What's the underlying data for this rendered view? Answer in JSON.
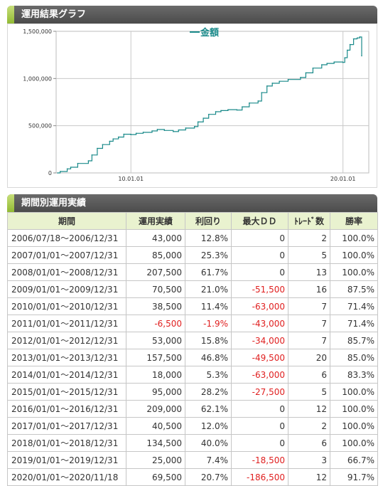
{
  "chart_section": {
    "title": "運用結果グラフ"
  },
  "table_section": {
    "title": "期間別運用実績"
  },
  "chart_data": {
    "type": "line",
    "title": "",
    "xlabel": "",
    "ylabel": "",
    "legend": "top-center",
    "grid": true,
    "ylim": [
      0,
      1500000
    ],
    "yticks": [
      0,
      500000,
      1000000,
      1500000
    ],
    "ytick_labels": [
      "0",
      "500,000",
      "1,000,000",
      "1,500,000"
    ],
    "xticks": [
      "2010-01-01",
      "2020-01-01"
    ],
    "xtick_labels": [
      "10.01.01",
      "20.01.01"
    ],
    "series": [
      {
        "name": "金額",
        "color": "#1a8a8a",
        "x": [
          "2006-07-18",
          "2006-09-01",
          "2006-12-31",
          "2007-03-01",
          "2007-07-01",
          "2007-12-31",
          "2008-03-01",
          "2008-06-01",
          "2008-09-01",
          "2008-12-31",
          "2009-03-01",
          "2009-06-01",
          "2009-09-01",
          "2009-12-31",
          "2010-04-01",
          "2010-08-01",
          "2010-12-31",
          "2011-04-01",
          "2011-08-01",
          "2011-12-31",
          "2012-04-01",
          "2012-08-01",
          "2012-12-31",
          "2013-03-01",
          "2013-06-01",
          "2013-09-01",
          "2013-12-31",
          "2014-04-01",
          "2014-08-01",
          "2014-12-31",
          "2015-04-01",
          "2015-08-01",
          "2015-12-31",
          "2016-03-01",
          "2016-06-01",
          "2016-09-01",
          "2016-12-31",
          "2017-06-01",
          "2017-12-31",
          "2018-04-01",
          "2018-08-01",
          "2018-12-31",
          "2019-04-01",
          "2019-08-01",
          "2019-12-31",
          "2020-02-01",
          "2020-03-15",
          "2020-05-01",
          "2020-07-01",
          "2020-09-01",
          "2020-10-15",
          "2020-11-18"
        ],
        "values": [
          0,
          15000,
          43000,
          60000,
          100000,
          128000,
          190000,
          260000,
          300000,
          335500,
          360000,
          380000,
          410000,
          406000,
          420000,
          430000,
          444500,
          460000,
          450000,
          438000,
          455000,
          475000,
          491000,
          540000,
          580000,
          620000,
          648500,
          660000,
          670000,
          666500,
          700000,
          740000,
          761500,
          850000,
          920000,
          950000,
          970500,
          990000,
          1011000,
          1060000,
          1110000,
          1145500,
          1160000,
          1175000,
          1170500,
          1220000,
          1300000,
          1360000,
          1420000,
          1430000,
          1440000,
          1240000
        ]
      }
    ]
  },
  "table": {
    "headers": [
      "期間",
      "運用実績",
      "利回り",
      "最大ＤＤ",
      "ﾄﾚｰﾄﾞ数",
      "勝率"
    ],
    "rows": [
      [
        "2006/07/18～2006/12/31",
        "43,000",
        "12.8%",
        "0",
        "2",
        "100.0%"
      ],
      [
        "2007/01/01～2007/12/31",
        "85,000",
        "25.3%",
        "0",
        "5",
        "100.0%"
      ],
      [
        "2008/01/01～2008/12/31",
        "207,500",
        "61.7%",
        "0",
        "13",
        "100.0%"
      ],
      [
        "2009/01/01～2009/12/31",
        "70,500",
        "21.0%",
        "-51,500",
        "16",
        "87.5%"
      ],
      [
        "2010/01/01～2010/12/31",
        "38,500",
        "11.4%",
        "-63,000",
        "7",
        "71.4%"
      ],
      [
        "2011/01/01～2011/12/31",
        "-6,500",
        "-1.9%",
        "-43,000",
        "7",
        "71.4%"
      ],
      [
        "2012/01/01～2012/12/31",
        "53,000",
        "15.8%",
        "-34,000",
        "7",
        "85.7%"
      ],
      [
        "2013/01/01～2013/12/31",
        "157,500",
        "46.8%",
        "-49,500",
        "20",
        "85.0%"
      ],
      [
        "2014/01/01～2014/12/31",
        "18,000",
        "5.3%",
        "-63,000",
        "6",
        "83.3%"
      ],
      [
        "2015/01/01～2015/12/31",
        "95,000",
        "28.2%",
        "-27,500",
        "5",
        "100.0%"
      ],
      [
        "2016/01/01～2016/12/31",
        "209,000",
        "62.1%",
        "0",
        "12",
        "100.0%"
      ],
      [
        "2017/01/01～2017/12/31",
        "40,500",
        "12.0%",
        "0",
        "2",
        "100.0%"
      ],
      [
        "2018/01/01～2018/12/31",
        "134,500",
        "40.0%",
        "0",
        "6",
        "100.0%"
      ],
      [
        "2019/01/01～2019/12/31",
        "25,000",
        "7.4%",
        "-18,500",
        "3",
        "66.7%"
      ],
      [
        "2020/01/01～2020/11/18",
        "69,500",
        "20.7%",
        "-186,500",
        "12",
        "91.7%"
      ]
    ]
  }
}
